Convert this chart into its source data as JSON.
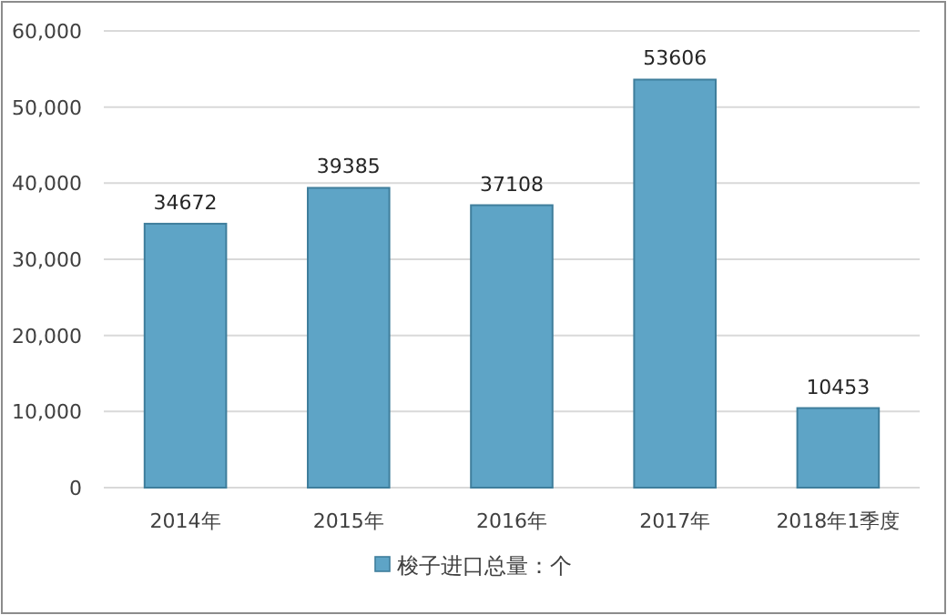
{
  "chart_data": {
    "type": "bar",
    "categories": [
      "2014年",
      "2015年",
      "2016年",
      "2017年",
      "2018年1季度"
    ],
    "series": [
      {
        "name": "梭子进口总量：个",
        "color": "#5ea4c6",
        "values": [
          34672,
          39385,
          37108,
          53606,
          10453
        ]
      }
    ],
    "data_labels": true,
    "ylim": [
      0,
      60000
    ],
    "yticks": [
      0,
      {
        "value": 10000,
        "label": "10,000"
      },
      {
        "value": 20000,
        "label": "20,000"
      },
      {
        "value": 30000,
        "label": "30,000"
      },
      {
        "value": 40000,
        "label": "40,000"
      },
      {
        "value": 50000,
        "label": "50,000"
      },
      {
        "value": 60000,
        "label": "60,000"
      }
    ],
    "grid": "y",
    "legend": "bottom"
  }
}
